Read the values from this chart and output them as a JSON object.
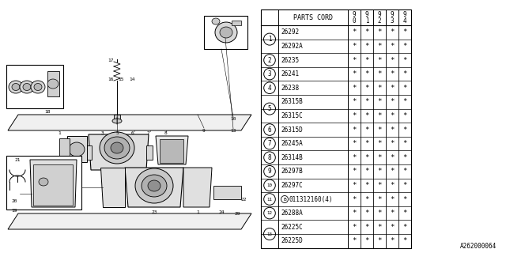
{
  "diagram_code": "A262000064",
  "table": {
    "rows": [
      {
        "num": "1",
        "code": "26292",
        "marks": [
          "*",
          "*",
          "*",
          "*",
          "*"
        ]
      },
      {
        "num": "1",
        "code": "26292A",
        "marks": [
          "*",
          "*",
          "*",
          "*",
          "*"
        ]
      },
      {
        "num": "2",
        "code": "26235",
        "marks": [
          "*",
          "*",
          "*",
          "*",
          "*"
        ]
      },
      {
        "num": "3",
        "code": "26241",
        "marks": [
          "*",
          "*",
          "*",
          "*",
          "*"
        ]
      },
      {
        "num": "4",
        "code": "26238",
        "marks": [
          "*",
          "*",
          "*",
          "*",
          "*"
        ]
      },
      {
        "num": "5",
        "code": "26315B",
        "marks": [
          "*",
          "*",
          "*",
          "*",
          "*"
        ]
      },
      {
        "num": "5",
        "code": "26315C",
        "marks": [
          "*",
          "*",
          "*",
          "*",
          "*"
        ]
      },
      {
        "num": "6",
        "code": "26315D",
        "marks": [
          "*",
          "*",
          "*",
          "*",
          "*"
        ]
      },
      {
        "num": "7",
        "code": "26245A",
        "marks": [
          "*",
          "*",
          "*",
          "*",
          "*"
        ]
      },
      {
        "num": "8",
        "code": "26314B",
        "marks": [
          "*",
          "*",
          "*",
          "*",
          "*"
        ]
      },
      {
        "num": "9",
        "code": "26297B",
        "marks": [
          "*",
          "*",
          "*",
          "*",
          "*"
        ]
      },
      {
        "num": "10",
        "code": "26297C",
        "marks": [
          "*",
          "*",
          "*",
          "*",
          "*"
        ]
      },
      {
        "num": "11",
        "code": "B 011312160(4)",
        "marks": [
          "*",
          "*",
          "*",
          "*",
          "*"
        ]
      },
      {
        "num": "12",
        "code": "26288A",
        "marks": [
          "*",
          "*",
          "*",
          "*",
          "*"
        ]
      },
      {
        "num": "13",
        "code": "26225C",
        "marks": [
          "*",
          "*",
          "*",
          "*",
          "*"
        ]
      },
      {
        "num": "13",
        "code": "26225D",
        "marks": [
          "*",
          "*",
          "*",
          "*",
          "*"
        ]
      }
    ]
  },
  "bg_color": "#ffffff"
}
